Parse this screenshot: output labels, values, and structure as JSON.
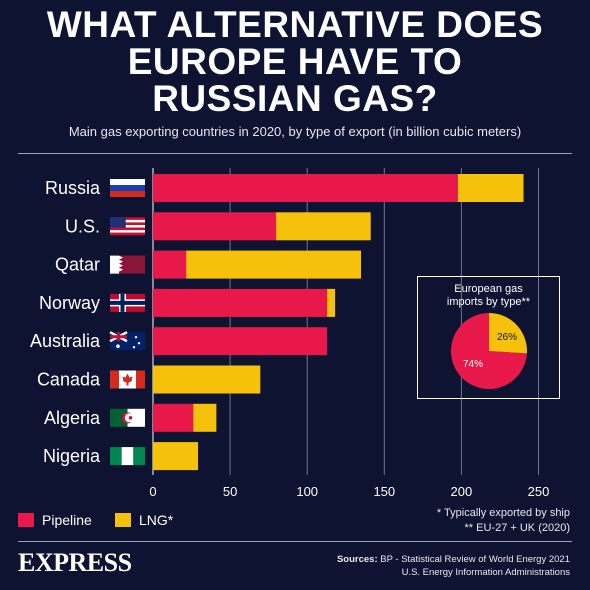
{
  "title_lines": [
    "WHAT ALTERNATIVE DOES",
    "EUROPE HAVE TO",
    "RUSSIAN GAS?"
  ],
  "subtitle": "Main gas exporting countries in 2020, by type of export (in billion cubic meters)",
  "colors": {
    "background": "#0d1330",
    "pipeline": "#e8194a",
    "lng": "#f5c10a",
    "grid": "#6f7590"
  },
  "chart_data": {
    "type": "bar",
    "orientation": "horizontal",
    "stacked": true,
    "title": "WHAT ALTERNATIVE DOES EUROPE HAVE TO RUSSIAN GAS?",
    "subtitle": "Main gas exporting countries in 2020, by type of export (in billion cubic meters)",
    "categories": [
      "Russia",
      "U.S.",
      "Qatar",
      "Norway",
      "Australia",
      "Canada",
      "Algeria",
      "Nigeria"
    ],
    "series": [
      {
        "name": "Pipeline",
        "values": [
          197.7,
          79.8,
          21.5,
          112.9,
          112.9,
          0,
          26.1,
          0
        ]
      },
      {
        "name": "LNG*",
        "values": [
          42.6,
          61.4,
          113.4,
          5.2,
          0,
          69.6,
          15.0,
          29.2
        ]
      }
    ],
    "xticks": [
      0,
      50,
      100,
      150,
      200,
      250
    ],
    "xlim": [
      0,
      250
    ],
    "grid": true,
    "legend": "bottom-left"
  },
  "flags": [
    "russia-flag",
    "us-flag",
    "qatar-flag",
    "norway-flag",
    "australia-flag",
    "canada-flag",
    "algeria-flag",
    "nigeria-flag"
  ],
  "legend": {
    "pipeline": "Pipeline",
    "lng": "LNG*"
  },
  "inset": {
    "title_line1": "European gas",
    "title_line2": "imports by type**",
    "chart_data": {
      "type": "pie",
      "slices": [
        {
          "label": "74%",
          "value": 74
        },
        {
          "label": "26%",
          "value": 26
        }
      ]
    }
  },
  "notes": {
    "line1": "* Typically exported by ship",
    "line2": "** EU-27 + UK (2020)"
  },
  "logo": "EXPRESS",
  "sources": {
    "label": "Sources:",
    "line1": "BP - Statistical Review of World Energy 2021",
    "line2": "U.S. Energy Information Administrations"
  }
}
